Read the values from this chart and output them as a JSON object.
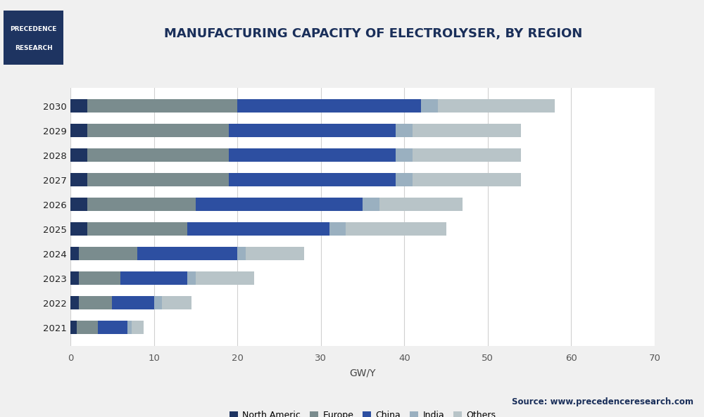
{
  "years": [
    "2030",
    "2029",
    "2028",
    "2027",
    "2026",
    "2025",
    "2024",
    "2023",
    "2022",
    "2021"
  ],
  "series": {
    "North Americ": [
      2.0,
      2.0,
      2.0,
      2.0,
      2.0,
      2.0,
      1.0,
      1.0,
      1.0,
      0.8
    ],
    "Europe": [
      18.0,
      17.0,
      17.0,
      17.0,
      13.0,
      12.0,
      7.0,
      5.0,
      4.0,
      2.5
    ],
    "China": [
      22.0,
      20.0,
      20.0,
      20.0,
      20.0,
      17.0,
      12.0,
      8.0,
      5.0,
      3.5
    ],
    "India": [
      2.0,
      2.0,
      2.0,
      2.0,
      2.0,
      2.0,
      1.0,
      1.0,
      1.0,
      0.5
    ],
    "Others": [
      14.0,
      13.0,
      13.0,
      13.0,
      10.0,
      12.0,
      7.0,
      7.0,
      3.5,
      1.5
    ]
  },
  "colors": {
    "North Americ": "#1e3461",
    "Europe": "#7a8c8e",
    "China": "#2d4fa1",
    "India": "#9ab0c0",
    "Others": "#b8c4c8"
  },
  "title": "MANUFACTURING CAPACITY OF ELECTROLYSER, BY REGION",
  "xlabel": "GW/Y",
  "xlim": [
    0,
    70
  ],
  "xticks": [
    0,
    10,
    20,
    30,
    40,
    50,
    60,
    70
  ],
  "background_color": "#f0f0f0",
  "plot_bg_color": "#ffffff",
  "source_text": "Source: www.precedenceresearch.com",
  "logo_line1": "PRECEDENCE",
  "logo_line2": "RESEARCH"
}
